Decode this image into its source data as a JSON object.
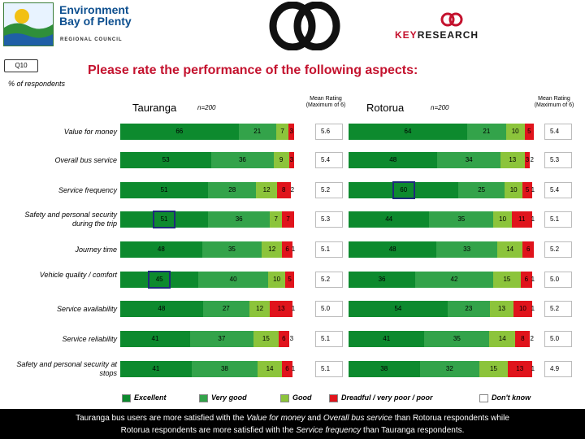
{
  "header": {
    "org_line1": "Environment",
    "org_line2": "Bay of Plenty",
    "org_sub": "REGIONAL COUNCIL",
    "brand_prefix": "KEY",
    "brand_suffix": "RESEARCH"
  },
  "question_id": "Q10",
  "title": "Please rate the performance of the following aspects:",
  "pct_label": "% of respondents",
  "groups": [
    {
      "name": "Tauranga",
      "n": "n=200",
      "mean_head_1": "Mean Rating",
      "mean_head_2": "(Maximum of 6)"
    },
    {
      "name": "Rotorua",
      "n": "n=200",
      "mean_head_1": "Mean Rating",
      "mean_head_2": "(Maximum of 6)"
    }
  ],
  "colors": {
    "excellent": "#0d8a2e",
    "very_good": "#33a34a",
    "good": "#8cc43b",
    "poor": "#e0141c",
    "dont_know": "#ffffff"
  },
  "chart_data": {
    "type": "bar",
    "categories": [
      "Value for money",
      "Overall bus service",
      "Service frequency",
      "Safety and personal security during the trip",
      "Journey time",
      "Vehicle quality / comfort",
      "Service availability",
      "Service reliability",
      "Safety and personal security at stops"
    ],
    "series_names": [
      "Excellent",
      "Very good",
      "Good",
      "Dreadful / very poor / poor",
      "Don't know"
    ],
    "charts": [
      {
        "group": "Tauranga",
        "values": [
          [
            66,
            21,
            7,
            3,
            0
          ],
          [
            53,
            36,
            9,
            3,
            0
          ],
          [
            51,
            28,
            12,
            8,
            2
          ],
          [
            51,
            36,
            7,
            7,
            0
          ],
          [
            48,
            35,
            12,
            6,
            1
          ],
          [
            45,
            40,
            10,
            5,
            0
          ],
          [
            48,
            27,
            12,
            13,
            1
          ],
          [
            41,
            37,
            15,
            6,
            3
          ],
          [
            41,
            38,
            14,
            6,
            1
          ]
        ],
        "labels": [
          [
            "66",
            "21",
            "7",
            "3",
            ""
          ],
          [
            "53",
            "36",
            "9",
            "3",
            ""
          ],
          [
            "51",
            "28",
            "12",
            "8",
            "2"
          ],
          [
            "51",
            "36",
            "7",
            "7",
            ""
          ],
          [
            "48",
            "35",
            "12",
            "6",
            "1"
          ],
          [
            "45",
            "40",
            "10",
            "5",
            ""
          ],
          [
            "48",
            "27",
            "12",
            "13",
            "1"
          ],
          [
            "41",
            "37",
            "15",
            "6",
            "3"
          ],
          [
            "41",
            "38",
            "14",
            "6",
            "1"
          ]
        ],
        "means": [
          "5.6",
          "5.4",
          "5.2",
          "5.3",
          "5.1",
          "5.2",
          "5.0",
          "5.1",
          "5.1"
        ],
        "highlight_row": [
          false,
          false,
          false,
          true,
          false,
          true,
          false,
          false,
          false
        ]
      },
      {
        "group": "Rotorua",
        "values": [
          [
            64,
            21,
            10,
            5,
            0
          ],
          [
            48,
            34,
            13,
            3,
            2
          ],
          [
            60,
            25,
            10,
            5,
            1
          ],
          [
            44,
            35,
            10,
            11,
            1
          ],
          [
            48,
            33,
            14,
            6,
            0
          ],
          [
            36,
            42,
            15,
            6,
            1
          ],
          [
            54,
            23,
            13,
            10,
            1
          ],
          [
            41,
            35,
            14,
            8,
            2
          ],
          [
            38,
            32,
            15,
            13,
            1
          ]
        ],
        "labels": [
          [
            "64",
            "21",
            "10",
            "5",
            ""
          ],
          [
            "48",
            "34",
            "13",
            "3",
            "2"
          ],
          [
            "60",
            "25",
            "10",
            "5",
            "1"
          ],
          [
            "44",
            "35",
            "10",
            "11",
            "1"
          ],
          [
            "48",
            "33",
            "14",
            "6",
            ""
          ],
          [
            "36",
            "42",
            "15",
            "6",
            "1"
          ],
          [
            "54",
            "23",
            "13",
            "10",
            "1"
          ],
          [
            "41",
            "35",
            "14",
            "8",
            "2"
          ],
          [
            "38",
            "32",
            "15",
            "13",
            "1"
          ]
        ],
        "means": [
          "5.4",
          "5.3",
          "5.4",
          "5.1",
          "5.2",
          "5.0",
          "5.2",
          "5.0",
          "4.9"
        ],
        "highlight_row": [
          false,
          false,
          true,
          false,
          false,
          false,
          false,
          false,
          false
        ]
      }
    ],
    "xlim": [
      0,
      100
    ]
  },
  "legend": [
    "Excellent",
    "Very good",
    "Good",
    "Dreadful / very poor / poor",
    "Don't know"
  ],
  "footer": {
    "line1_a": "Tauranga bus users are more satisfied with the ",
    "line1_b": "Value for money",
    "line1_c": " and ",
    "line1_d": "Overall bus service",
    "line1_e": " than Rotorua respondents while",
    "line2_a": "Rotorua respondents are more satisfied with the ",
    "line2_b": "Service frequency",
    "line2_c": " than Tauranga respondents."
  }
}
